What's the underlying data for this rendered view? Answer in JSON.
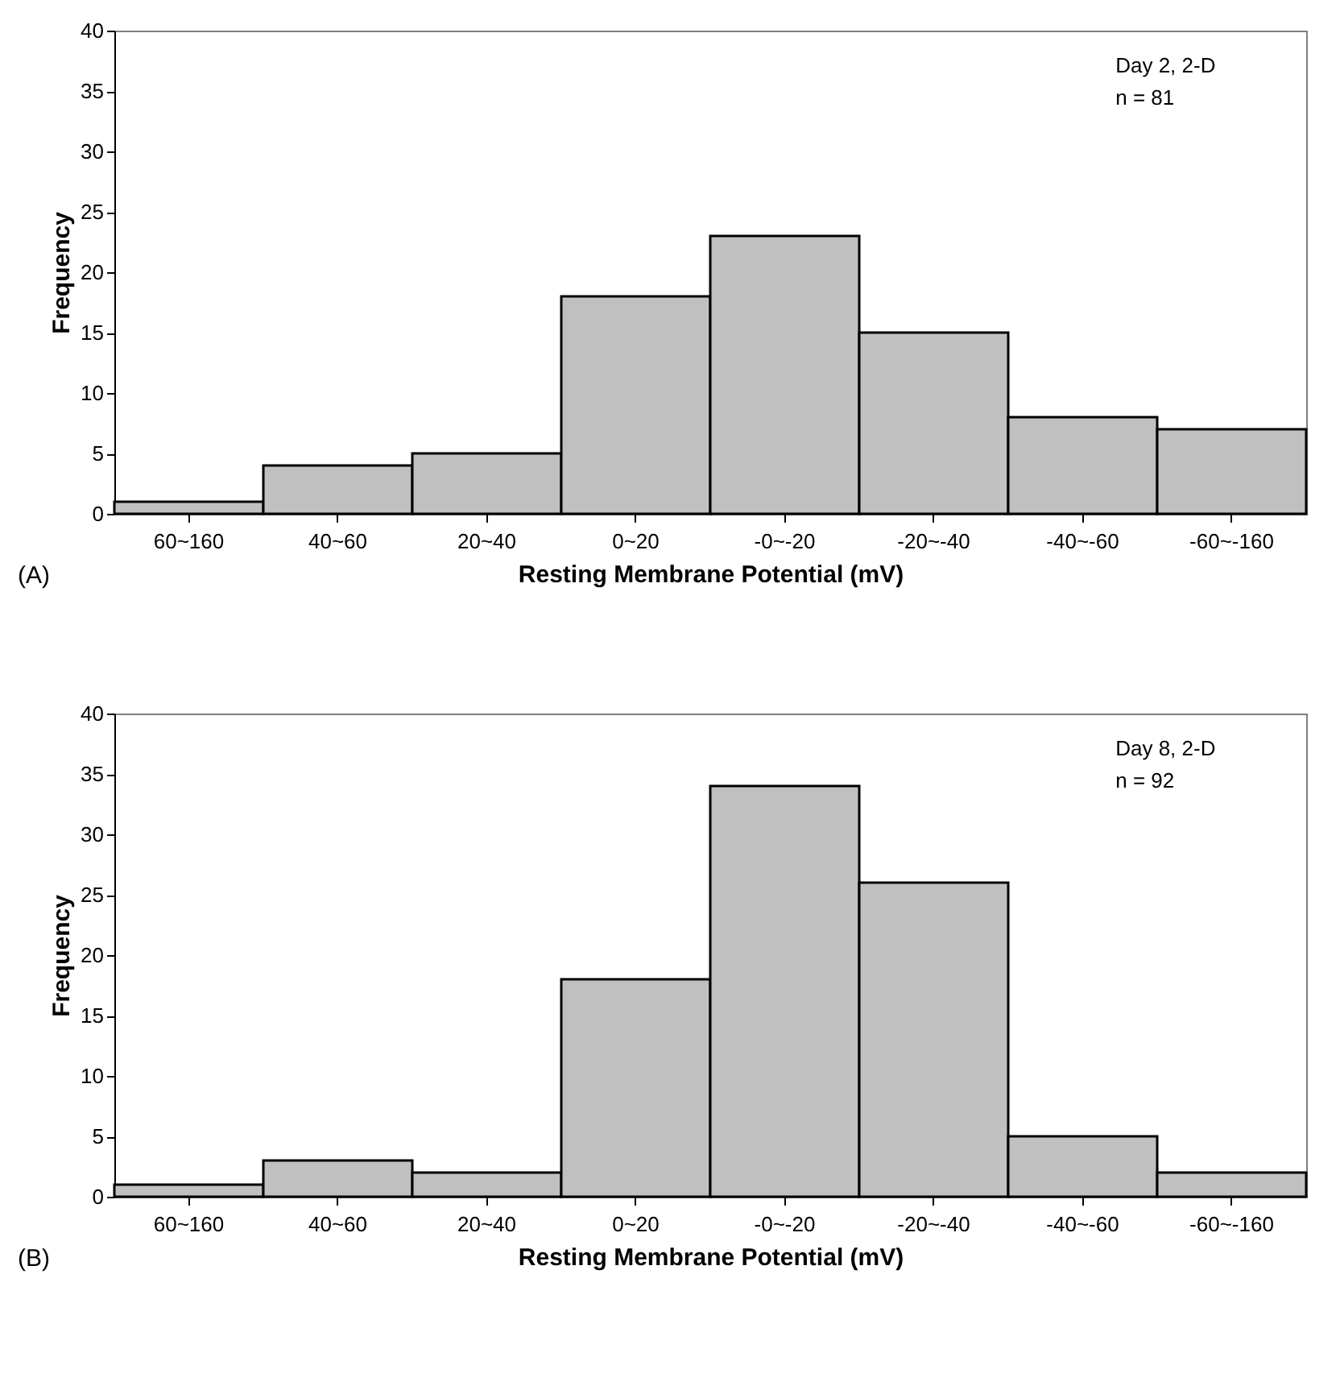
{
  "chart_data": [
    {
      "type": "bar",
      "categories": [
        "60~160",
        "40~60",
        "20~40",
        "0~20",
        "-0~-20",
        "-20~-40",
        "-40~-60",
        "-60~-160"
      ],
      "values": [
        1,
        4,
        5,
        18,
        23,
        15,
        8,
        7
      ],
      "color": "#c0c0c0",
      "ylim": [
        0,
        40
      ],
      "yticks": [
        0,
        5,
        10,
        15,
        20,
        25,
        30,
        35,
        40
      ],
      "xlabel": "Resting Membrane Potential  (mV)",
      "ylabel": "Frequency",
      "annotations": [
        "Day 2, 2-D",
        "n = 81",
        "(A)"
      ]
    },
    {
      "type": "bar",
      "categories": [
        "60~160",
        "40~60",
        "20~40",
        "0~20",
        "-0~-20",
        "-20~-40",
        "-40~-60",
        "-60~-160"
      ],
      "values": [
        1,
        3,
        2,
        18,
        34,
        26,
        5,
        2
      ],
      "color": "#c0c0c0",
      "ylim": [
        0,
        40
      ],
      "yticks": [
        0,
        5,
        10,
        15,
        20,
        25,
        30,
        35,
        40
      ],
      "xlabel": "Resting Membrane Potential (mV)",
      "ylabel": "Frequency",
      "annotations": [
        "Day  8, 2-D",
        "n = 92",
        "(B)"
      ]
    }
  ]
}
